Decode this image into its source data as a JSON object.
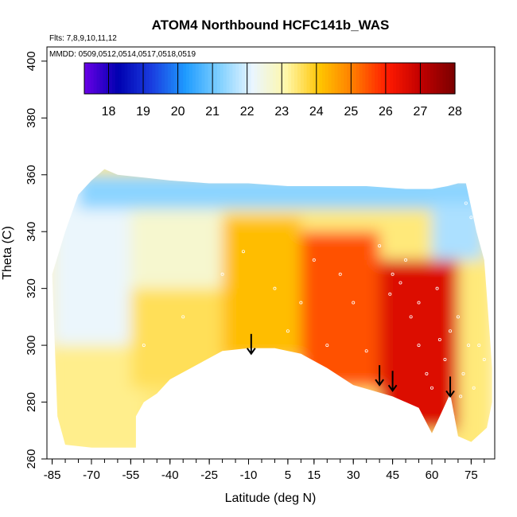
{
  "chart_data": {
    "type": "heatmap",
    "title": "ATOM4 Northbound HCFC141b_WAS",
    "notes": [
      "Flts: 7,8,9,10,11,12",
      "MMDD: 0509,0512,0514,0517,0518,0519"
    ],
    "xlabel": "Latitude (deg N)",
    "ylabel": "Theta (C)",
    "xlim": [
      -87,
      84
    ],
    "ylim": [
      260,
      405
    ],
    "xticks": [
      -85,
      -70,
      -55,
      -40,
      -25,
      -10,
      5,
      15,
      30,
      45,
      60,
      75
    ],
    "yticks": [
      260,
      280,
      300,
      320,
      340,
      360,
      380,
      400
    ],
    "colorbar": {
      "min": 17.3,
      "max": 28,
      "ticks": [
        18,
        19,
        20,
        21,
        22,
        23,
        24,
        25,
        26,
        27,
        28
      ],
      "colors": [
        "#6a00e6",
        "#0000b0",
        "#1a3de0",
        "#1e9bff",
        "#7fd0ff",
        "#eaf6ff",
        "#fff7a8",
        "#ffc400",
        "#ff7a00",
        "#ff1a00",
        "#c00000",
        "#7a0000"
      ]
    },
    "top_boundary": [
      [
        -85,
        325
      ],
      [
        -80,
        340
      ],
      [
        -75,
        353
      ],
      [
        -70,
        358
      ],
      [
        -65,
        362
      ],
      [
        -60,
        360
      ],
      [
        -50,
        359
      ],
      [
        -40,
        358
      ],
      [
        -25,
        357
      ],
      [
        -10,
        357
      ],
      [
        5,
        356
      ],
      [
        20,
        356
      ],
      [
        35,
        356
      ],
      [
        50,
        355
      ],
      [
        60,
        355
      ],
      [
        66,
        356
      ],
      [
        70,
        357
      ],
      [
        73,
        357
      ],
      [
        77,
        340
      ],
      [
        80,
        330
      ],
      [
        82,
        305
      ],
      [
        83,
        292
      ],
      [
        83,
        280
      ]
    ],
    "bottom_boundary": [
      [
        83,
        280
      ],
      [
        81,
        271
      ],
      [
        75,
        266
      ],
      [
        70,
        268
      ],
      [
        67,
        283
      ],
      [
        63,
        275
      ],
      [
        60,
        269
      ],
      [
        55,
        278
      ],
      [
        45,
        282
      ],
      [
        30,
        286
      ],
      [
        20,
        292
      ],
      [
        10,
        297
      ],
      [
        0,
        299
      ],
      [
        -10,
        299
      ],
      [
        -20,
        298
      ],
      [
        -30,
        293
      ],
      [
        -40,
        288
      ],
      [
        -45,
        283
      ],
      [
        -50,
        280
      ],
      [
        -53,
        275
      ],
      [
        -53,
        264
      ],
      [
        -60,
        264
      ],
      [
        -70,
        264
      ],
      [
        -80,
        265
      ],
      [
        -83,
        275
      ],
      [
        -84,
        300
      ],
      [
        -85,
        325
      ]
    ],
    "field_bands": [
      {
        "lat": [
          -85,
          -50
        ],
        "theta": [
          260,
          300
        ],
        "value": 23.3
      },
      {
        "lat": [
          -85,
          -55
        ],
        "theta": [
          300,
          358
        ],
        "value": 22.2
      },
      {
        "lat": [
          -55,
          -20
        ],
        "theta": [
          285,
          320
        ],
        "value": 23.6
      },
      {
        "lat": [
          -55,
          -20
        ],
        "theta": [
          320,
          350
        ],
        "value": 22.7
      },
      {
        "lat": [
          -20,
          10
        ],
        "theta": [
          295,
          345
        ],
        "value": 24.2
      },
      {
        "lat": [
          10,
          40
        ],
        "theta": [
          285,
          340
        ],
        "value": 25.5
      },
      {
        "lat": [
          40,
          70
        ],
        "theta": [
          270,
          330
        ],
        "value": 26.6
      },
      {
        "lat": [
          -75,
          80
        ],
        "theta": [
          348,
          360
        ],
        "value": 21.3
      },
      {
        "lat": [
          60,
          80
        ],
        "theta": [
          330,
          350
        ],
        "value": 21.6
      }
    ],
    "arrows": [
      {
        "lat": -9,
        "theta_top": 304,
        "theta_tip": 297
      },
      {
        "lat": 40,
        "theta_top": 293,
        "theta_tip": 286
      },
      {
        "lat": 45,
        "theta_top": 291,
        "theta_tip": 284
      },
      {
        "lat": 67,
        "theta_top": 289,
        "theta_tip": 282
      }
    ],
    "samples": [
      [
        -50,
        300
      ],
      [
        -35,
        310
      ],
      [
        -20,
        325
      ],
      [
        -12,
        333
      ],
      [
        0,
        320
      ],
      [
        5,
        305
      ],
      [
        10,
        315
      ],
      [
        15,
        330
      ],
      [
        20,
        300
      ],
      [
        25,
        325
      ],
      [
        30,
        315
      ],
      [
        35,
        298
      ],
      [
        40,
        335
      ],
      [
        45,
        325
      ],
      [
        48,
        322
      ],
      [
        52,
        310
      ],
      [
        55,
        300
      ],
      [
        58,
        290
      ],
      [
        60,
        285
      ],
      [
        62,
        320
      ],
      [
        65,
        295
      ],
      [
        67,
        305
      ],
      [
        70,
        310
      ],
      [
        72,
        290
      ],
      [
        74,
        300
      ],
      [
        76,
        285
      ],
      [
        78,
        300
      ],
      [
        80,
        295
      ],
      [
        73,
        350
      ],
      [
        75,
        345
      ],
      [
        44,
        318
      ],
      [
        50,
        330
      ],
      [
        55,
        315
      ],
      [
        63,
        302
      ],
      [
        68,
        275
      ],
      [
        71,
        282
      ]
    ]
  }
}
